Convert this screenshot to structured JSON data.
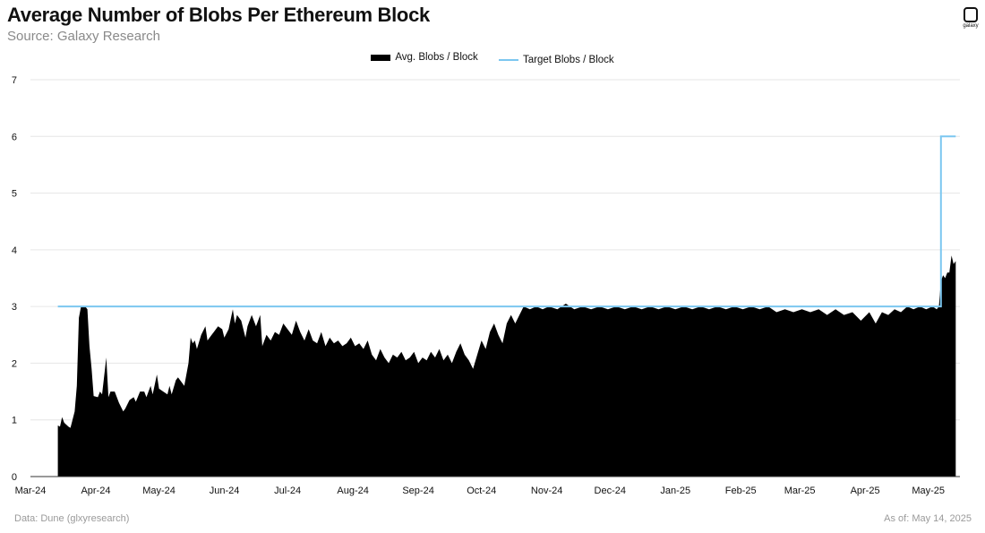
{
  "header": {
    "title": "Average Number of Blobs Per Ethereum Block",
    "subtitle": "Source: Galaxy Research",
    "logo_text": "galaxy"
  },
  "footer": {
    "data_source": "Data: Dune (glxyresearch)",
    "as_of": "As of: May 14, 2025"
  },
  "colors": {
    "area": "#000000",
    "target_line": "#7cc7f0",
    "grid": "#e6e6e6"
  },
  "chart_data": {
    "type": "area",
    "ylim": [
      0,
      7
    ],
    "y_ticks": [
      0,
      1,
      2,
      3,
      4,
      5,
      6,
      7
    ],
    "xlim": [
      "2024-03-01",
      "2025-05-16"
    ],
    "x_ticks": [
      {
        "date": "2024-03-01",
        "label": "Mar-24"
      },
      {
        "date": "2024-04-01",
        "label": "Apr-24"
      },
      {
        "date": "2024-05-01",
        "label": "May-24"
      },
      {
        "date": "2024-06-01",
        "label": "Jun-24"
      },
      {
        "date": "2024-07-01",
        "label": "Jul-24"
      },
      {
        "date": "2024-08-01",
        "label": "Aug-24"
      },
      {
        "date": "2024-09-01",
        "label": "Sep-24"
      },
      {
        "date": "2024-10-01",
        "label": "Oct-24"
      },
      {
        "date": "2024-11-01",
        "label": "Nov-24"
      },
      {
        "date": "2024-12-01",
        "label": "Dec-24"
      },
      {
        "date": "2025-01-01",
        "label": "Jan-25"
      },
      {
        "date": "2025-02-01",
        "label": "Feb-25"
      },
      {
        "date": "2025-03-01",
        "label": "Mar-25"
      },
      {
        "date": "2025-04-01",
        "label": "Apr-25"
      },
      {
        "date": "2025-05-01",
        "label": "May-25"
      }
    ],
    "legend": {
      "position": "top-center"
    },
    "grid": true,
    "series": [
      {
        "name": "Avg. Blobs / Block",
        "kind": "area",
        "points": [
          [
            "2024-03-14",
            0.9
          ],
          [
            "2024-03-15",
            0.88
          ],
          [
            "2024-03-16",
            1.05
          ],
          [
            "2024-03-17",
            0.95
          ],
          [
            "2024-03-19",
            0.88
          ],
          [
            "2024-03-20",
            0.86
          ],
          [
            "2024-03-22",
            1.15
          ],
          [
            "2024-03-23",
            1.6
          ],
          [
            "2024-03-24",
            2.8
          ],
          [
            "2024-03-25",
            3.0
          ],
          [
            "2024-03-27",
            3.0
          ],
          [
            "2024-03-28",
            2.95
          ],
          [
            "2024-03-29",
            2.3
          ],
          [
            "2024-03-30",
            1.9
          ],
          [
            "2024-03-31",
            1.42
          ],
          [
            "2024-04-02",
            1.4
          ],
          [
            "2024-04-03",
            1.5
          ],
          [
            "2024-04-04",
            1.45
          ],
          [
            "2024-04-06",
            2.1
          ],
          [
            "2024-04-07",
            1.4
          ],
          [
            "2024-04-08",
            1.5
          ],
          [
            "2024-04-10",
            1.5
          ],
          [
            "2024-04-12",
            1.3
          ],
          [
            "2024-04-14",
            1.15
          ],
          [
            "2024-04-15",
            1.2
          ],
          [
            "2024-04-17",
            1.35
          ],
          [
            "2024-04-19",
            1.4
          ],
          [
            "2024-04-20",
            1.32
          ],
          [
            "2024-04-22",
            1.5
          ],
          [
            "2024-04-24",
            1.5
          ],
          [
            "2024-04-25",
            1.4
          ],
          [
            "2024-04-27",
            1.6
          ],
          [
            "2024-04-28",
            1.45
          ],
          [
            "2024-04-30",
            1.8
          ],
          [
            "2024-05-01",
            1.55
          ],
          [
            "2024-05-03",
            1.5
          ],
          [
            "2024-05-05",
            1.45
          ],
          [
            "2024-05-06",
            1.6
          ],
          [
            "2024-05-07",
            1.45
          ],
          [
            "2024-05-09",
            1.7
          ],
          [
            "2024-05-10",
            1.75
          ],
          [
            "2024-05-12",
            1.65
          ],
          [
            "2024-05-13",
            1.6
          ],
          [
            "2024-05-15",
            2.0
          ],
          [
            "2024-05-16",
            2.45
          ],
          [
            "2024-05-17",
            2.35
          ],
          [
            "2024-05-18",
            2.4
          ],
          [
            "2024-05-19",
            2.25
          ],
          [
            "2024-05-21",
            2.5
          ],
          [
            "2024-05-23",
            2.65
          ],
          [
            "2024-05-24",
            2.4
          ],
          [
            "2024-05-26",
            2.5
          ],
          [
            "2024-05-27",
            2.55
          ],
          [
            "2024-05-29",
            2.65
          ],
          [
            "2024-05-31",
            2.6
          ],
          [
            "2024-06-01",
            2.45
          ],
          [
            "2024-06-03",
            2.6
          ],
          [
            "2024-06-05",
            2.95
          ],
          [
            "2024-06-06",
            2.7
          ],
          [
            "2024-06-07",
            2.85
          ],
          [
            "2024-06-09",
            2.75
          ],
          [
            "2024-06-11",
            2.45
          ],
          [
            "2024-06-12",
            2.65
          ],
          [
            "2024-06-14",
            2.85
          ],
          [
            "2024-06-16",
            2.65
          ],
          [
            "2024-06-18",
            2.85
          ],
          [
            "2024-06-19",
            2.3
          ],
          [
            "2024-06-21",
            2.5
          ],
          [
            "2024-06-23",
            2.4
          ],
          [
            "2024-06-25",
            2.55
          ],
          [
            "2024-06-27",
            2.5
          ],
          [
            "2024-06-29",
            2.7
          ],
          [
            "2024-07-01",
            2.6
          ],
          [
            "2024-07-03",
            2.5
          ],
          [
            "2024-07-05",
            2.75
          ],
          [
            "2024-07-07",
            2.55
          ],
          [
            "2024-07-09",
            2.4
          ],
          [
            "2024-07-11",
            2.6
          ],
          [
            "2024-07-13",
            2.4
          ],
          [
            "2024-07-15",
            2.35
          ],
          [
            "2024-07-17",
            2.55
          ],
          [
            "2024-07-19",
            2.3
          ],
          [
            "2024-07-21",
            2.45
          ],
          [
            "2024-07-23",
            2.35
          ],
          [
            "2024-07-25",
            2.4
          ],
          [
            "2024-07-27",
            2.3
          ],
          [
            "2024-07-29",
            2.35
          ],
          [
            "2024-07-31",
            2.45
          ],
          [
            "2024-08-02",
            2.3
          ],
          [
            "2024-08-04",
            2.35
          ],
          [
            "2024-08-06",
            2.25
          ],
          [
            "2024-08-08",
            2.4
          ],
          [
            "2024-08-10",
            2.15
          ],
          [
            "2024-08-12",
            2.05
          ],
          [
            "2024-08-14",
            2.25
          ],
          [
            "2024-08-16",
            2.1
          ],
          [
            "2024-08-18",
            2.0
          ],
          [
            "2024-08-20",
            2.15
          ],
          [
            "2024-08-22",
            2.1
          ],
          [
            "2024-08-24",
            2.2
          ],
          [
            "2024-08-26",
            2.05
          ],
          [
            "2024-08-28",
            2.1
          ],
          [
            "2024-08-30",
            2.2
          ],
          [
            "2024-09-01",
            2.0
          ],
          [
            "2024-09-03",
            2.1
          ],
          [
            "2024-09-05",
            2.05
          ],
          [
            "2024-09-07",
            2.2
          ],
          [
            "2024-09-09",
            2.1
          ],
          [
            "2024-09-11",
            2.25
          ],
          [
            "2024-09-13",
            2.05
          ],
          [
            "2024-09-15",
            2.15
          ],
          [
            "2024-09-17",
            2.0
          ],
          [
            "2024-09-19",
            2.2
          ],
          [
            "2024-09-21",
            2.35
          ],
          [
            "2024-09-23",
            2.15
          ],
          [
            "2024-09-25",
            2.05
          ],
          [
            "2024-09-27",
            1.9
          ],
          [
            "2024-09-29",
            2.15
          ],
          [
            "2024-10-01",
            2.4
          ],
          [
            "2024-10-03",
            2.25
          ],
          [
            "2024-10-05",
            2.55
          ],
          [
            "2024-10-07",
            2.7
          ],
          [
            "2024-10-09",
            2.5
          ],
          [
            "2024-10-11",
            2.35
          ],
          [
            "2024-10-13",
            2.7
          ],
          [
            "2024-10-15",
            2.85
          ],
          [
            "2024-10-17",
            2.7
          ],
          [
            "2024-10-19",
            2.85
          ],
          [
            "2024-10-21",
            3.0
          ],
          [
            "2024-10-24",
            2.95
          ],
          [
            "2024-10-27",
            3.0
          ],
          [
            "2024-10-30",
            2.95
          ],
          [
            "2024-11-02",
            3.0
          ],
          [
            "2024-11-06",
            2.95
          ],
          [
            "2024-11-10",
            3.05
          ],
          [
            "2024-11-14",
            2.95
          ],
          [
            "2024-11-18",
            3.0
          ],
          [
            "2024-11-22",
            2.95
          ],
          [
            "2024-11-26",
            3.0
          ],
          [
            "2024-11-30",
            2.95
          ],
          [
            "2024-12-04",
            3.0
          ],
          [
            "2024-12-08",
            2.95
          ],
          [
            "2024-12-12",
            3.0
          ],
          [
            "2024-12-16",
            2.95
          ],
          [
            "2024-12-20",
            3.0
          ],
          [
            "2024-12-24",
            2.95
          ],
          [
            "2024-12-28",
            3.0
          ],
          [
            "2025-01-01",
            2.95
          ],
          [
            "2025-01-05",
            3.0
          ],
          [
            "2025-01-09",
            2.95
          ],
          [
            "2025-01-13",
            3.0
          ],
          [
            "2025-01-17",
            2.95
          ],
          [
            "2025-01-21",
            3.0
          ],
          [
            "2025-01-25",
            2.95
          ],
          [
            "2025-01-29",
            3.0
          ],
          [
            "2025-02-02",
            2.95
          ],
          [
            "2025-02-06",
            3.0
          ],
          [
            "2025-02-10",
            2.95
          ],
          [
            "2025-02-14",
            3.0
          ],
          [
            "2025-02-18",
            2.9
          ],
          [
            "2025-02-22",
            2.95
          ],
          [
            "2025-02-26",
            2.9
          ],
          [
            "2025-03-02",
            2.95
          ],
          [
            "2025-03-06",
            2.9
          ],
          [
            "2025-03-10",
            2.95
          ],
          [
            "2025-03-14",
            2.85
          ],
          [
            "2025-03-18",
            2.95
          ],
          [
            "2025-03-22",
            2.85
          ],
          [
            "2025-03-26",
            2.9
          ],
          [
            "2025-03-30",
            2.75
          ],
          [
            "2025-04-03",
            2.9
          ],
          [
            "2025-04-06",
            2.7
          ],
          [
            "2025-04-09",
            2.9
          ],
          [
            "2025-04-12",
            2.85
          ],
          [
            "2025-04-15",
            2.95
          ],
          [
            "2025-04-18",
            2.9
          ],
          [
            "2025-04-21",
            3.0
          ],
          [
            "2025-04-24",
            2.95
          ],
          [
            "2025-04-27",
            3.0
          ],
          [
            "2025-04-30",
            2.95
          ],
          [
            "2025-05-03",
            3.0
          ],
          [
            "2025-05-05",
            2.95
          ],
          [
            "2025-05-06",
            3.0
          ],
          [
            "2025-05-07",
            3.45
          ],
          [
            "2025-05-08",
            3.55
          ],
          [
            "2025-05-09",
            3.5
          ],
          [
            "2025-05-10",
            3.6
          ],
          [
            "2025-05-11",
            3.6
          ],
          [
            "2025-05-12",
            3.9
          ],
          [
            "2025-05-13",
            3.75
          ],
          [
            "2025-05-14",
            3.8
          ]
        ]
      },
      {
        "name": "Target Blobs / Block",
        "kind": "step",
        "points": [
          [
            "2024-03-14",
            3
          ],
          [
            "2025-05-07",
            3
          ],
          [
            "2025-05-07",
            6
          ],
          [
            "2025-05-14",
            6
          ]
        ]
      }
    ]
  }
}
